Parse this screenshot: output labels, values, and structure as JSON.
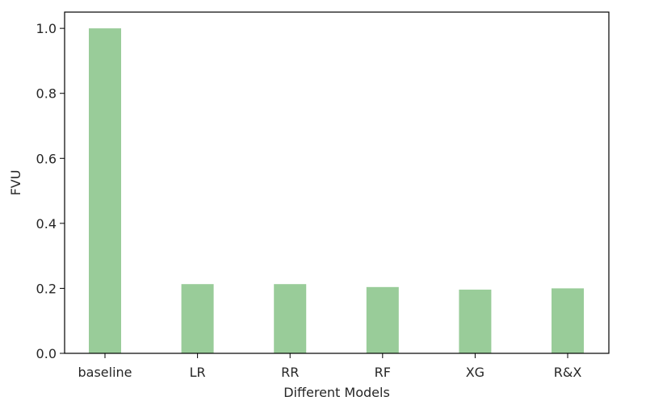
{
  "chart_data": {
    "type": "bar",
    "title": "",
    "xlabel": "Different Models",
    "ylabel": "FVU",
    "categories": [
      "baseline",
      "LR",
      "RR",
      "RF",
      "XG",
      "R&X"
    ],
    "values": [
      1.0,
      0.213,
      0.213,
      0.204,
      0.196,
      0.2
    ],
    "ylim": [
      0,
      1.05
    ],
    "yticks": [
      0.0,
      0.2,
      0.4,
      0.6,
      0.8,
      1.0
    ],
    "ytick_labels": [
      "0.0",
      "0.2",
      "0.4",
      "0.6",
      "0.8",
      "1.0"
    ],
    "bar_color": "#99cc99",
    "grid": false,
    "legend": null
  }
}
